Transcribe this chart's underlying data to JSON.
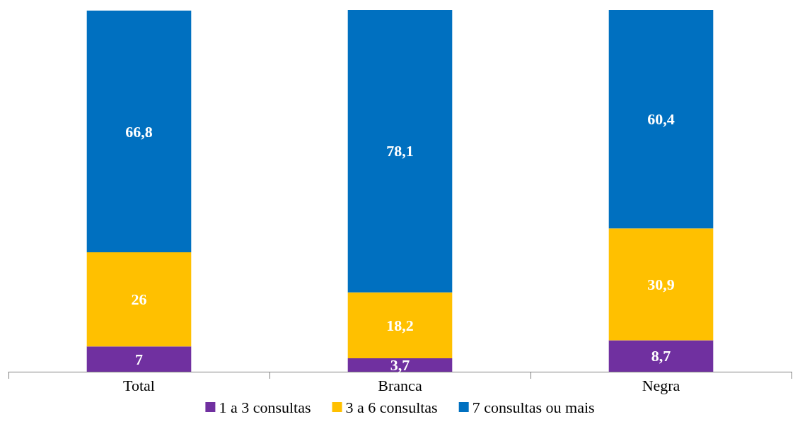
{
  "chart_data": {
    "type": "bar",
    "stacked": true,
    "categories": [
      "Total",
      "Branca",
      "Negra"
    ],
    "ylim": [
      0,
      100
    ],
    "legend": "bottom",
    "tick_labels": "x",
    "series": [
      {
        "name": "1 a 3 consultas",
        "color": "#7030a0",
        "values": [
          7,
          3.7,
          8.7
        ],
        "value_labels": [
          "7",
          "3,7",
          "8,7"
        ]
      },
      {
        "name": "3 a 6 consultas",
        "color": "#ffc000",
        "values": [
          26,
          18.2,
          30.9
        ],
        "value_labels": [
          "26",
          "18,2",
          "30,9"
        ]
      },
      {
        "name": "7 consultas ou mais",
        "color": "#0070c0",
        "values": [
          66.8,
          78.1,
          60.4
        ],
        "value_labels": [
          "66,8",
          "78,1",
          "60,4"
        ]
      }
    ]
  }
}
